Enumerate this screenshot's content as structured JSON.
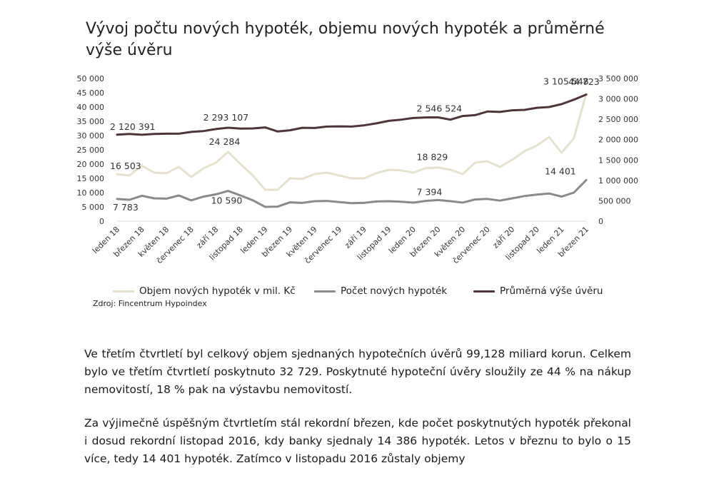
{
  "title": "Vývoj počtu nových hypoték, objemu nových hypoték a průměrné výše úvěru",
  "source": "Zdroj: Fincentrum Hypoindex",
  "paragraphs": [
    "Ve třetím čtvrtletí byl celkový objem sjednaných hypotečních úvěrů 99,128 miliard korun. Celkem bylo ve třetím čtvrtletí poskytnuto 32 729. Poskytnuté hypoteční úvěry sloužily ze 44 % na nákup nemovitostí, 18 % pak na výstavbu nemovitostí.",
    "Za výjimečně úspěšným čtvrtletím stál rekordní březen, kde počet poskytnutých hypoték překonal i dosud rekordní listopad 2016, kdy banky sjednaly 14 386 hypoték. Letos v březnu to bylo o 15 více, tedy 14 401 hypoték. Zatímco v listopadu 2016 zůstaly objemy"
  ],
  "chart_data": {
    "type": "line",
    "title": "Vývoj počtu nových hypoték, objemu nových hypoték a průměrné výše úvěru",
    "x_tick_labels": [
      "leden 18",
      "březen 18",
      "květen 18",
      "červenec 18",
      "září 18",
      "listopad 18",
      "leden 19",
      "březen 19",
      "květen 19",
      "červenec 19",
      "září 19",
      "listopad 19",
      "leden 20",
      "březen 20",
      "květen 20",
      "červenec 20",
      "září 20",
      "listopad 20",
      "leden 21",
      "březen 21"
    ],
    "x_tick_every": 2,
    "left_axis": {
      "ylim": [
        0,
        50000
      ],
      "ticks": [
        "0",
        "5 000",
        "10 000",
        "15 000",
        "20 000",
        "25 000",
        "30 000",
        "35 000",
        "40 000",
        "45 000",
        "50 000"
      ],
      "tick_values": [
        0,
        5000,
        10000,
        15000,
        20000,
        25000,
        30000,
        35000,
        40000,
        45000,
        50000
      ]
    },
    "right_axis": {
      "ylim": [
        0,
        3500000
      ],
      "ticks": [
        "0",
        "500 000",
        "1 000 000",
        "1 500 000",
        "2 000 000",
        "2 500 000",
        "3 000 000",
        "3 500 000"
      ],
      "tick_values": [
        0,
        500000,
        1000000,
        1500000,
        2000000,
        2500000,
        3000000,
        3500000
      ]
    },
    "series": [
      {
        "name": "Objem nových hypoték v mil. Kč",
        "axis": "left",
        "color": "#e6e1cc",
        "values": [
          16503,
          16000,
          19500,
          17000,
          16800,
          19000,
          15500,
          18500,
          20500,
          24284,
          20000,
          16000,
          11000,
          11000,
          15000,
          14800,
          16500,
          17000,
          16000,
          15000,
          15000,
          16800,
          18000,
          17800,
          17000,
          18600,
          18829,
          18000,
          16500,
          20500,
          21000,
          19000,
          21500,
          24500,
          26500,
          29500,
          24000,
          29000,
          44723
        ]
      },
      {
        "name": "Počet nových hypoték",
        "axis": "left",
        "color": "#8a8a8a",
        "values": [
          7783,
          7500,
          8900,
          8000,
          7900,
          9000,
          7300,
          8600,
          9400,
          10590,
          9000,
          7300,
          5000,
          5100,
          6600,
          6400,
          7000,
          7100,
          6700,
          6300,
          6400,
          6900,
          7000,
          6800,
          6500,
          7100,
          7394,
          7000,
          6500,
          7600,
          7800,
          7200,
          8000,
          8800,
          9300,
          9700,
          8600,
          10000,
          14401
        ]
      },
      {
        "name": "Průměrná výše úvěru",
        "axis": "right",
        "color": "#4f3538",
        "values": [
          2120391,
          2140000,
          2120000,
          2140000,
          2145000,
          2145000,
          2190000,
          2210000,
          2260000,
          2293107,
          2270000,
          2275000,
          2300000,
          2200000,
          2230000,
          2290000,
          2285000,
          2320000,
          2325000,
          2320000,
          2350000,
          2400000,
          2460000,
          2490000,
          2530000,
          2545000,
          2546524,
          2490000,
          2580000,
          2600000,
          2690000,
          2680000,
          2720000,
          2730000,
          2780000,
          2800000,
          2870000,
          2980000,
          3105548
        ]
      }
    ],
    "annotations": [
      {
        "series": 2,
        "index": 0,
        "text": "2 120 391"
      },
      {
        "series": 2,
        "index": 9,
        "text": "2 293 107"
      },
      {
        "series": 2,
        "index": 26,
        "text": "2 546 524"
      },
      {
        "series": 2,
        "index": 38,
        "text": "3 105 548"
      },
      {
        "series": 0,
        "index": 0,
        "text": "16 503"
      },
      {
        "series": 0,
        "index": 9,
        "text": "24 284"
      },
      {
        "series": 0,
        "index": 26,
        "text": "18 829"
      },
      {
        "series": 0,
        "index": 38,
        "text": "44 723"
      },
      {
        "series": 1,
        "index": 0,
        "text": "7 783"
      },
      {
        "series": 1,
        "index": 9,
        "text": "10 590"
      },
      {
        "series": 1,
        "index": 26,
        "text": "7 394"
      },
      {
        "series": 1,
        "index": 38,
        "text": "14 401"
      }
    ],
    "legend_position": "bottom",
    "grid": false
  }
}
